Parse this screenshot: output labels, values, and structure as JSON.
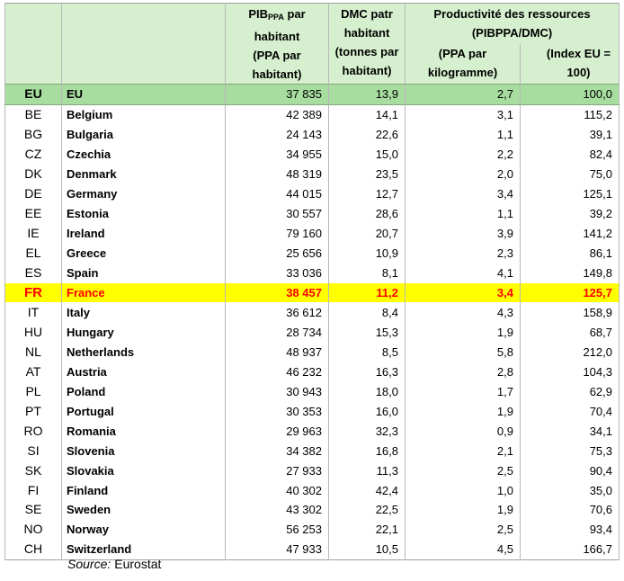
{
  "header": {
    "pib": {
      "main": "PIB",
      "sub": "PPA",
      "rest": " par habitant",
      "unit": "(PPA par habitant)"
    },
    "dmc": {
      "title": "DMC patr habitant",
      "unit": "(tonnes par habitant)"
    },
    "productivity": {
      "title": "Productivité des ressources (PIBPPA/DMC)",
      "units": [
        "(PPA par kilogramme)",
        "(Index EU = 100)"
      ]
    }
  },
  "table": {
    "rows": [
      [
        "EU",
        "EU",
        "37 835",
        "13,9",
        "2,7",
        "100,0"
      ],
      [
        "BE",
        "Belgium",
        "42 389",
        "14,1",
        "3,1",
        "115,2"
      ],
      [
        "BG",
        "Bulgaria",
        "24 143",
        "22,6",
        "1,1",
        "39,1"
      ],
      [
        "CZ",
        "Czechia",
        "34 955",
        "15,0",
        "2,2",
        "82,4"
      ],
      [
        "DK",
        "Denmark",
        "48 319",
        "23,5",
        "2,0",
        "75,0"
      ],
      [
        "DE",
        "Germany",
        "44 015",
        "12,7",
        "3,4",
        "125,1"
      ],
      [
        "EE",
        "Estonia",
        "30 557",
        "28,6",
        "1,1",
        "39,2"
      ],
      [
        "IE",
        "Ireland",
        "79 160",
        "20,7",
        "3,9",
        "141,2"
      ],
      [
        "EL",
        "Greece",
        "25 656",
        "10,9",
        "2,3",
        "86,1"
      ],
      [
        "ES",
        "Spain",
        "33 036",
        "8,1",
        "4,1",
        "149,8"
      ],
      [
        "FR",
        "France",
        "38 457",
        "11,2",
        "3,4",
        "125,7"
      ],
      [
        "IT",
        "Italy",
        "36 612",
        "8,4",
        "4,3",
        "158,9"
      ],
      [
        "HU",
        "Hungary",
        "28 734",
        "15,3",
        "1,9",
        "68,7"
      ],
      [
        "NL",
        "Netherlands",
        "48 937",
        "8,5",
        "5,8",
        "212,0"
      ],
      [
        "AT",
        "Austria",
        "46 232",
        "16,3",
        "2,8",
        "104,3"
      ],
      [
        "PL",
        "Poland",
        "30 943",
        "18,0",
        "1,7",
        "62,9"
      ],
      [
        "PT",
        "Portugal",
        "30 353",
        "16,0",
        "1,9",
        "70,4"
      ],
      [
        "RO",
        "Romania",
        "29 963",
        "32,3",
        "0,9",
        "34,1"
      ],
      [
        "SI",
        "Slovenia",
        "34 382",
        "16,8",
        "2,1",
        "75,3"
      ],
      [
        "SK",
        "Slovakia",
        "27 933",
        "11,3",
        "2,5",
        "90,4"
      ],
      [
        "FI",
        "Finland",
        "40 302",
        "42,4",
        "1,0",
        "35,0"
      ],
      [
        "SE",
        "Sweden",
        "43 302",
        "22,5",
        "1,9",
        "70,6"
      ],
      [
        "NO",
        "Norway",
        "56 253",
        "22,1",
        "2,5",
        "93,4"
      ],
      [
        "CH",
        "Switzerland",
        "47 933",
        "10,5",
        "4,5",
        "166,7"
      ]
    ]
  },
  "source": {
    "label": "Source:",
    "text": "Eurostat"
  }
}
